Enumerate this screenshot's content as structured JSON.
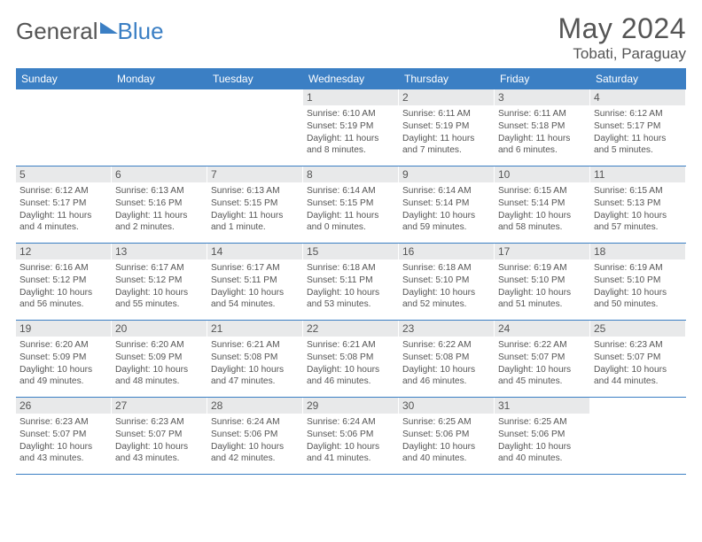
{
  "brand": {
    "part1": "General",
    "part2": "Blue"
  },
  "title": "May 2024",
  "location": "Tobati, Paraguay",
  "colors": {
    "header_bg": "#3b7fc4",
    "header_text": "#ffffff",
    "daynum_bg": "#e8e9ea",
    "text": "#555555"
  },
  "weekdays": [
    "Sunday",
    "Monday",
    "Tuesday",
    "Wednesday",
    "Thursday",
    "Friday",
    "Saturday"
  ],
  "weeks": [
    [
      {
        "empty": true
      },
      {
        "empty": true
      },
      {
        "empty": true
      },
      {
        "num": "1",
        "sunrise": "6:10 AM",
        "sunset": "5:19 PM",
        "daylight": "11 hours and 8 minutes."
      },
      {
        "num": "2",
        "sunrise": "6:11 AM",
        "sunset": "5:19 PM",
        "daylight": "11 hours and 7 minutes."
      },
      {
        "num": "3",
        "sunrise": "6:11 AM",
        "sunset": "5:18 PM",
        "daylight": "11 hours and 6 minutes."
      },
      {
        "num": "4",
        "sunrise": "6:12 AM",
        "sunset": "5:17 PM",
        "daylight": "11 hours and 5 minutes."
      }
    ],
    [
      {
        "num": "5",
        "sunrise": "6:12 AM",
        "sunset": "5:17 PM",
        "daylight": "11 hours and 4 minutes."
      },
      {
        "num": "6",
        "sunrise": "6:13 AM",
        "sunset": "5:16 PM",
        "daylight": "11 hours and 2 minutes."
      },
      {
        "num": "7",
        "sunrise": "6:13 AM",
        "sunset": "5:15 PM",
        "daylight": "11 hours and 1 minute."
      },
      {
        "num": "8",
        "sunrise": "6:14 AM",
        "sunset": "5:15 PM",
        "daylight": "11 hours and 0 minutes."
      },
      {
        "num": "9",
        "sunrise": "6:14 AM",
        "sunset": "5:14 PM",
        "daylight": "10 hours and 59 minutes."
      },
      {
        "num": "10",
        "sunrise": "6:15 AM",
        "sunset": "5:14 PM",
        "daylight": "10 hours and 58 minutes."
      },
      {
        "num": "11",
        "sunrise": "6:15 AM",
        "sunset": "5:13 PM",
        "daylight": "10 hours and 57 minutes."
      }
    ],
    [
      {
        "num": "12",
        "sunrise": "6:16 AM",
        "sunset": "5:12 PM",
        "daylight": "10 hours and 56 minutes."
      },
      {
        "num": "13",
        "sunrise": "6:17 AM",
        "sunset": "5:12 PM",
        "daylight": "10 hours and 55 minutes."
      },
      {
        "num": "14",
        "sunrise": "6:17 AM",
        "sunset": "5:11 PM",
        "daylight": "10 hours and 54 minutes."
      },
      {
        "num": "15",
        "sunrise": "6:18 AM",
        "sunset": "5:11 PM",
        "daylight": "10 hours and 53 minutes."
      },
      {
        "num": "16",
        "sunrise": "6:18 AM",
        "sunset": "5:10 PM",
        "daylight": "10 hours and 52 minutes."
      },
      {
        "num": "17",
        "sunrise": "6:19 AM",
        "sunset": "5:10 PM",
        "daylight": "10 hours and 51 minutes."
      },
      {
        "num": "18",
        "sunrise": "6:19 AM",
        "sunset": "5:10 PM",
        "daylight": "10 hours and 50 minutes."
      }
    ],
    [
      {
        "num": "19",
        "sunrise": "6:20 AM",
        "sunset": "5:09 PM",
        "daylight": "10 hours and 49 minutes."
      },
      {
        "num": "20",
        "sunrise": "6:20 AM",
        "sunset": "5:09 PM",
        "daylight": "10 hours and 48 minutes."
      },
      {
        "num": "21",
        "sunrise": "6:21 AM",
        "sunset": "5:08 PM",
        "daylight": "10 hours and 47 minutes."
      },
      {
        "num": "22",
        "sunrise": "6:21 AM",
        "sunset": "5:08 PM",
        "daylight": "10 hours and 46 minutes."
      },
      {
        "num": "23",
        "sunrise": "6:22 AM",
        "sunset": "5:08 PM",
        "daylight": "10 hours and 46 minutes."
      },
      {
        "num": "24",
        "sunrise": "6:22 AM",
        "sunset": "5:07 PM",
        "daylight": "10 hours and 45 minutes."
      },
      {
        "num": "25",
        "sunrise": "6:23 AM",
        "sunset": "5:07 PM",
        "daylight": "10 hours and 44 minutes."
      }
    ],
    [
      {
        "num": "26",
        "sunrise": "6:23 AM",
        "sunset": "5:07 PM",
        "daylight": "10 hours and 43 minutes."
      },
      {
        "num": "27",
        "sunrise": "6:23 AM",
        "sunset": "5:07 PM",
        "daylight": "10 hours and 43 minutes."
      },
      {
        "num": "28",
        "sunrise": "6:24 AM",
        "sunset": "5:06 PM",
        "daylight": "10 hours and 42 minutes."
      },
      {
        "num": "29",
        "sunrise": "6:24 AM",
        "sunset": "5:06 PM",
        "daylight": "10 hours and 41 minutes."
      },
      {
        "num": "30",
        "sunrise": "6:25 AM",
        "sunset": "5:06 PM",
        "daylight": "10 hours and 40 minutes."
      },
      {
        "num": "31",
        "sunrise": "6:25 AM",
        "sunset": "5:06 PM",
        "daylight": "10 hours and 40 minutes."
      },
      {
        "empty": true
      }
    ]
  ]
}
